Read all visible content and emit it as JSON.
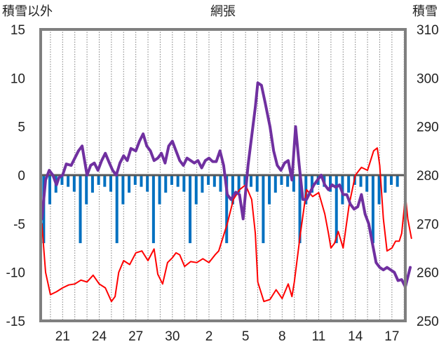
{
  "chart_data": {
    "type": "line",
    "title": "網張",
    "ylabel_left": "積雪以外",
    "ylabel_right": "積雪",
    "y_left": {
      "min": -15,
      "max": 15,
      "ticks": [
        15,
        10,
        5,
        0,
        -5,
        -10,
        -15
      ]
    },
    "y_right": {
      "min": 250,
      "max": 310,
      "ticks": [
        310,
        300,
        290,
        280,
        270,
        260,
        250
      ]
    },
    "x_axis": {
      "unit": "days",
      "start": 19.2,
      "end": 49.1,
      "tick_labels": [
        "21",
        "24",
        "27",
        "30",
        "2",
        "5",
        "8",
        "11",
        "14",
        "17"
      ],
      "tick_positions": [
        21,
        24,
        27,
        30,
        33,
        36,
        39,
        42,
        45,
        48
      ],
      "gridlines": "dotted-vertical"
    },
    "colors": {
      "temperature": "#ff0000",
      "snow_depth": "#7030a0",
      "bars": "#0070c0",
      "frame": "#7f7f7f",
      "zero_line": "#595959",
      "grid": "#7f7f7f"
    },
    "series": [
      {
        "axis": "left",
        "color": "#ff0000",
        "points": [
          [
            19.3,
            -5
          ],
          [
            19.6,
            -10
          ],
          [
            20.0,
            -12.3
          ],
          [
            20.5,
            -12
          ],
          [
            21.0,
            -11.6
          ],
          [
            21.5,
            -11.3
          ],
          [
            22.0,
            -11.2
          ],
          [
            22.5,
            -10.8
          ],
          [
            23.0,
            -11
          ],
          [
            23.5,
            -10.3
          ],
          [
            24.0,
            -11.2
          ],
          [
            24.5,
            -11.6
          ],
          [
            25.0,
            -13
          ],
          [
            25.3,
            -12.5
          ],
          [
            25.6,
            -10
          ],
          [
            26.0,
            -8.8
          ],
          [
            26.5,
            -9.2
          ],
          [
            27.0,
            -8
          ],
          [
            27.5,
            -7.8
          ],
          [
            28.0,
            -8.8
          ],
          [
            28.5,
            -7.6
          ],
          [
            28.8,
            -10.2
          ],
          [
            29.2,
            -11.2
          ],
          [
            29.6,
            -9
          ],
          [
            30.0,
            -8.5
          ],
          [
            30.3,
            -8
          ],
          [
            30.6,
            -8.2
          ],
          [
            31.0,
            -9.4
          ],
          [
            31.5,
            -8.9
          ],
          [
            32.0,
            -9
          ],
          [
            32.5,
            -8.6
          ],
          [
            33.0,
            -9
          ],
          [
            33.5,
            -8.2
          ],
          [
            33.8,
            -7.8
          ],
          [
            34.0,
            -7
          ],
          [
            34.5,
            -5
          ],
          [
            35.0,
            -2.5
          ],
          [
            35.5,
            -1.5
          ],
          [
            36.0,
            -1
          ],
          [
            36.5,
            -2.5
          ],
          [
            36.8,
            -6
          ],
          [
            37.0,
            -11
          ],
          [
            37.5,
            -13
          ],
          [
            38.0,
            -12.8
          ],
          [
            38.5,
            -11.8
          ],
          [
            39.0,
            -12.7
          ],
          [
            39.5,
            -11.2
          ],
          [
            39.8,
            -12.5
          ],
          [
            40.0,
            -11
          ],
          [
            40.5,
            -6
          ],
          [
            41.0,
            -1.5
          ],
          [
            41.5,
            -2.2
          ],
          [
            42.0,
            -1.8
          ],
          [
            42.5,
            -4
          ],
          [
            42.8,
            -6
          ],
          [
            43.0,
            -7.5
          ],
          [
            43.3,
            -7
          ],
          [
            43.6,
            -5.8
          ],
          [
            44.0,
            -7.5
          ],
          [
            44.5,
            -3
          ],
          [
            45.0,
            0
          ],
          [
            45.5,
            0.8
          ],
          [
            46.0,
            0.5
          ],
          [
            46.5,
            2.5
          ],
          [
            46.8,
            2.8
          ],
          [
            47.0,
            1
          ],
          [
            47.3,
            -4.5
          ],
          [
            47.6,
            -7.8
          ],
          [
            48.0,
            -7.5
          ],
          [
            48.3,
            -6.8
          ],
          [
            48.6,
            -6.8
          ],
          [
            48.8,
            -6
          ],
          [
            49.0,
            -3.5
          ],
          [
            49.1,
            -2
          ],
          [
            49.3,
            -4.5
          ],
          [
            49.6,
            -6.5
          ]
        ]
      },
      {
        "axis": "right",
        "color": "#7030a0",
        "points": [
          [
            19.3,
            271
          ],
          [
            19.6,
            279
          ],
          [
            19.9,
            281
          ],
          [
            20.2,
            280
          ],
          [
            20.5,
            278
          ],
          [
            20.7,
            279.5
          ],
          [
            21.0,
            280
          ],
          [
            21.3,
            282.3
          ],
          [
            21.7,
            282
          ],
          [
            22.0,
            283.5
          ],
          [
            22.3,
            285
          ],
          [
            22.6,
            286
          ],
          [
            23.0,
            280
          ],
          [
            23.3,
            282
          ],
          [
            23.6,
            282.5
          ],
          [
            23.9,
            281
          ],
          [
            24.2,
            283
          ],
          [
            24.5,
            284.5
          ],
          [
            24.8,
            282.7
          ],
          [
            25.1,
            281
          ],
          [
            25.4,
            280
          ],
          [
            25.7,
            282.5
          ],
          [
            26.0,
            284
          ],
          [
            26.3,
            283
          ],
          [
            26.6,
            285.5
          ],
          [
            27.0,
            285
          ],
          [
            27.3,
            287
          ],
          [
            27.6,
            288.5
          ],
          [
            27.9,
            286
          ],
          [
            28.2,
            285
          ],
          [
            28.5,
            283
          ],
          [
            28.8,
            283.5
          ],
          [
            29.1,
            284.5
          ],
          [
            29.4,
            282.5
          ],
          [
            29.7,
            286
          ],
          [
            30.0,
            287
          ],
          [
            30.3,
            285
          ],
          [
            30.6,
            283
          ],
          [
            30.9,
            282
          ],
          [
            31.2,
            283.5
          ],
          [
            31.5,
            283
          ],
          [
            31.8,
            282.5
          ],
          [
            32.1,
            283
          ],
          [
            32.4,
            281.5
          ],
          [
            32.7,
            283
          ],
          [
            33.0,
            283.5
          ],
          [
            33.3,
            282.8
          ],
          [
            33.6,
            282.8
          ],
          [
            33.9,
            285
          ],
          [
            34.2,
            282
          ],
          [
            34.5,
            276
          ],
          [
            34.8,
            275
          ],
          [
            35.2,
            276.5
          ],
          [
            35.5,
            276
          ],
          [
            35.8,
            271
          ],
          [
            36.2,
            282
          ],
          [
            36.5,
            288
          ],
          [
            36.8,
            294
          ],
          [
            37.0,
            299
          ],
          [
            37.3,
            298.5
          ],
          [
            37.6,
            295
          ],
          [
            38.0,
            290
          ],
          [
            38.3,
            285
          ],
          [
            38.6,
            282
          ],
          [
            38.9,
            281
          ],
          [
            39.2,
            282.5
          ],
          [
            39.5,
            283
          ],
          [
            39.8,
            279
          ],
          [
            40.1,
            290
          ],
          [
            40.4,
            282
          ],
          [
            40.7,
            275
          ],
          [
            41.0,
            275
          ],
          [
            41.3,
            276.5
          ],
          [
            41.6,
            278
          ],
          [
            41.9,
            279
          ],
          [
            42.2,
            280
          ],
          [
            42.5,
            278
          ],
          [
            42.8,
            277
          ],
          [
            43.1,
            278
          ],
          [
            43.4,
            277.5
          ],
          [
            43.7,
            278
          ],
          [
            44.0,
            276
          ],
          [
            44.3,
            276
          ],
          [
            44.6,
            274
          ],
          [
            44.9,
            273
          ],
          [
            45.2,
            273.5
          ],
          [
            45.5,
            276
          ],
          [
            45.8,
            272
          ],
          [
            46.1,
            270
          ],
          [
            46.4,
            266
          ],
          [
            46.7,
            262
          ],
          [
            47.0,
            261
          ],
          [
            47.3,
            260.5
          ],
          [
            47.6,
            261
          ],
          [
            47.9,
            260.5
          ],
          [
            48.2,
            260
          ],
          [
            48.5,
            258.3
          ],
          [
            48.8,
            258.5
          ],
          [
            49.1,
            257
          ],
          [
            49.3,
            259
          ],
          [
            49.5,
            261
          ]
        ]
      }
    ],
    "bars": {
      "color": "#0070c0",
      "pattern_depths": [
        -7,
        -3,
        -1.8,
        -1,
        -1.2,
        -1.7
      ],
      "start_day": 19.45,
      "end_day": 48.6,
      "spacing": 0.5
    }
  }
}
